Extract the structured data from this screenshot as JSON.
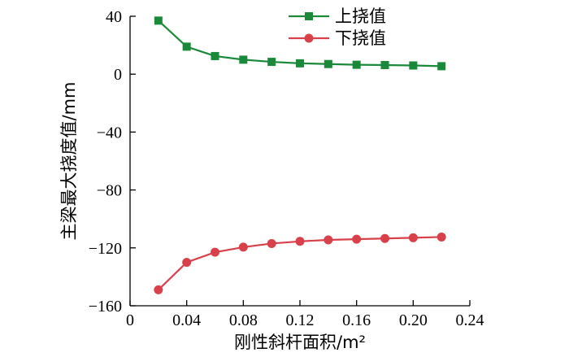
{
  "chart_data": {
    "type": "line",
    "xlabel": "刚性斜杆面积/m²",
    "ylabel": "主梁最大挠度值/mm",
    "x": [
      0.02,
      0.04,
      0.06,
      0.08,
      0.1,
      0.12,
      0.14,
      0.16,
      0.18,
      0.2,
      0.22
    ],
    "xlim": [
      0,
      0.24
    ],
    "ylim": [
      -160,
      40
    ],
    "xticks": [
      0,
      0.04,
      0.08,
      0.12,
      0.16,
      0.2,
      0.24
    ],
    "xtick_labels": [
      "0",
      "0.04",
      "0.08",
      "0.12",
      "0.16",
      "0.20",
      "0.24"
    ],
    "yticks": [
      40,
      0,
      -40,
      -80,
      -120,
      -160
    ],
    "ytick_labels": [
      "40",
      "0",
      "−40",
      "−80",
      "−120",
      "−160"
    ],
    "legend_position": "top-right",
    "grid": false,
    "series": [
      {
        "name": "上挠值",
        "color": "#1a8a3a",
        "marker": "square",
        "values": [
          37,
          19,
          12.5,
          10,
          8.5,
          7.5,
          7,
          6.5,
          6.3,
          6,
          5.5
        ]
      },
      {
        "name": "下挠值",
        "color": "#d9414a",
        "marker": "circle",
        "values": [
          -149,
          -130,
          -123,
          -119.5,
          -117,
          -115.5,
          -114.5,
          -114,
          -113.5,
          -113,
          -112.5
        ]
      }
    ]
  }
}
